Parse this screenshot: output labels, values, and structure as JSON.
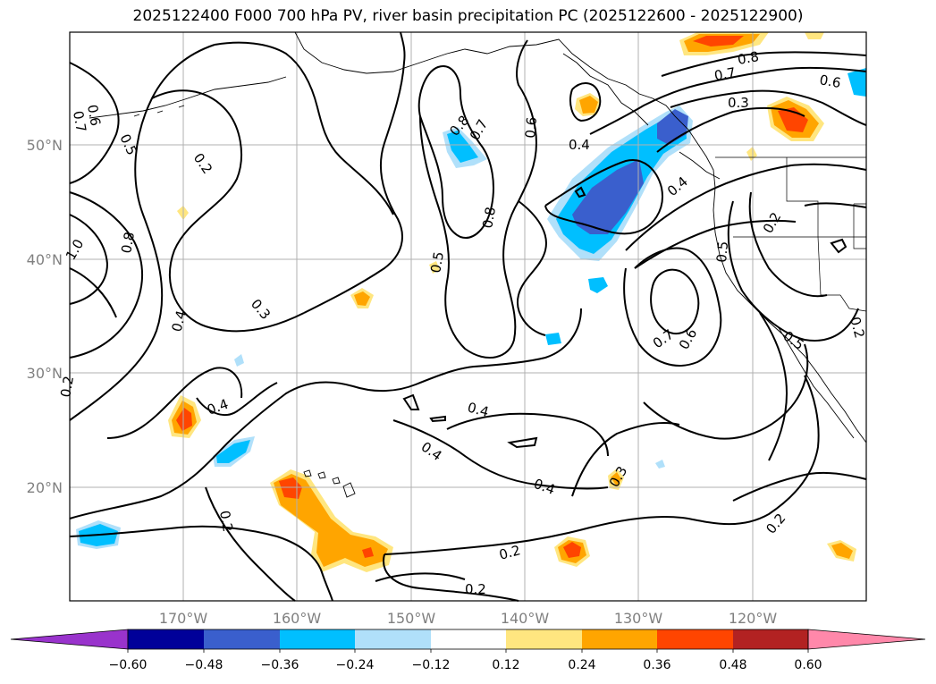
{
  "title": "2025122400 F000 700 hPa PV, river basin precipitation PC (2025122600 - 2025122900)",
  "map": {
    "lon_ticks": [
      "170°W",
      "160°W",
      "150°W",
      "140°W",
      "130°W",
      "120°W"
    ],
    "lat_ticks": [
      "50°N",
      "40°N",
      "30°N",
      "20°N"
    ],
    "contour_labels": [
      "0.7",
      "0.6",
      "0.5",
      "0.2",
      "1.0",
      "0.8",
      "0.4",
      "0.3",
      "0.8",
      "0.7",
      "0.6",
      "0.4",
      "0.8",
      "0.5",
      "0.4",
      "0.4",
      "0.2",
      "0.4",
      "0.4",
      "0.3",
      "0.2",
      "0.2",
      "0.7",
      "0.6",
      "0.5",
      "0.5",
      "0.2",
      "0.8",
      "0.7",
      "0.3",
      "0.6",
      "0.4",
      "0.2",
      "0.2",
      "0.2"
    ]
  },
  "colorbar": {
    "tick_labels": [
      "−0.60",
      "−0.48",
      "−0.36",
      "−0.24",
      "−0.12",
      "0.12",
      "0.24",
      "0.36",
      "0.48",
      "0.60"
    ],
    "colors": [
      "#9933cc",
      "#000099",
      "#3a5fcd",
      "#00bfff",
      "#b0e0fa",
      "#ffffff",
      "#ffe680",
      "#ffa500",
      "#ff4500",
      "#b22222",
      "#ff88aa"
    ]
  },
  "colors": {
    "grid": "#b0b0b0",
    "tick_text": "#808080"
  }
}
